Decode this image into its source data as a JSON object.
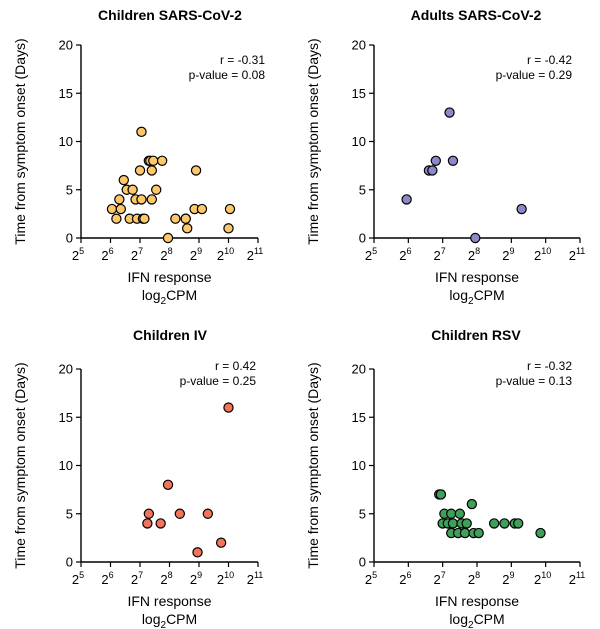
{
  "chart_data": [
    {
      "type": "scatter",
      "title": "Children SARS-CoV-2",
      "xlabel": "IFN response",
      "xlabel_line2": "log",
      "xlabel_sub": "2",
      "xlabel_suffix": "CPM",
      "ylabel": "Time from symptom onset (Days)",
      "x_scale": "log2",
      "xlim_exp": [
        5,
        11
      ],
      "x_tick_base": "2",
      "x_tick_exps": [
        "5",
        "6",
        "7",
        "8",
        "9",
        "10",
        "11"
      ],
      "ylim": [
        0,
        20
      ],
      "y_ticks": [
        "0",
        "5",
        "10",
        "15",
        "20"
      ],
      "stats": {
        "r": "r = -0.31",
        "p": "p-value = 0.08"
      },
      "marker_color": "#FDC86A",
      "points": [
        [
          6.05,
          3
        ],
        [
          6.2,
          2
        ],
        [
          6.3,
          4
        ],
        [
          6.35,
          3
        ],
        [
          6.45,
          6
        ],
        [
          6.55,
          5
        ],
        [
          6.65,
          2
        ],
        [
          6.75,
          5
        ],
        [
          6.85,
          4
        ],
        [
          6.9,
          2
        ],
        [
          7.0,
          7
        ],
        [
          7.05,
          11
        ],
        [
          7.05,
          4
        ],
        [
          7.1,
          2
        ],
        [
          7.15,
          2
        ],
        [
          7.3,
          8
        ],
        [
          7.35,
          8
        ],
        [
          7.4,
          7
        ],
        [
          7.45,
          8
        ],
        [
          7.55,
          5
        ],
        [
          7.75,
          8
        ],
        [
          7.4,
          4
        ],
        [
          7.95,
          0
        ],
        [
          8.2,
          2
        ],
        [
          8.55,
          2
        ],
        [
          8.6,
          1
        ],
        [
          8.55,
          2
        ],
        [
          8.9,
          7
        ],
        [
          8.85,
          3
        ],
        [
          9.1,
          3
        ],
        [
          10.05,
          3
        ],
        [
          10.0,
          1
        ]
      ]
    },
    {
      "type": "scatter",
      "title": "Adults SARS-CoV-2",
      "xlabel": "IFN response",
      "xlabel_line2": "log",
      "xlabel_sub": "2",
      "xlabel_suffix": "CPM",
      "ylabel": "Time from symptom onset (Days)",
      "x_scale": "log2",
      "xlim_exp": [
        5,
        11
      ],
      "x_tick_base": "2",
      "x_tick_exps": [
        "5",
        "6",
        "7",
        "8",
        "9",
        "10",
        "11"
      ],
      "ylim": [
        0,
        20
      ],
      "y_ticks": [
        "0",
        "5",
        "10",
        "15",
        "20"
      ],
      "stats": {
        "r": "r = -0.42",
        "p": "p-value = 0.29"
      },
      "marker_color": "#8C89C8",
      "points": [
        [
          5.95,
          4
        ],
        [
          6.6,
          7
        ],
        [
          6.7,
          7
        ],
        [
          6.8,
          8
        ],
        [
          7.2,
          13
        ],
        [
          7.3,
          8
        ],
        [
          7.95,
          0
        ],
        [
          9.3,
          3
        ]
      ]
    },
    {
      "type": "scatter",
      "title": "Children IV",
      "xlabel": "IFN response",
      "xlabel_line2": "log",
      "xlabel_sub": "2",
      "xlabel_suffix": "CPM",
      "ylabel": "Time from symptom onset (Days)",
      "x_scale": "log2",
      "xlim_exp": [
        5,
        11
      ],
      "x_tick_base": "2",
      "x_tick_exps": [
        "5",
        "6",
        "7",
        "8",
        "9",
        "10",
        "11"
      ],
      "ylim": [
        0,
        20
      ],
      "y_ticks": [
        "0",
        "5",
        "10",
        "15",
        "20"
      ],
      "stats": {
        "r": "r = 0.42",
        "p": "p-value = 0.25"
      },
      "marker_color": "#F2745A",
      "points": [
        [
          7.25,
          4
        ],
        [
          7.3,
          5
        ],
        [
          7.7,
          4
        ],
        [
          7.95,
          8
        ],
        [
          8.35,
          5
        ],
        [
          8.95,
          1
        ],
        [
          9.3,
          5
        ],
        [
          9.75,
          2
        ],
        [
          10.0,
          16
        ]
      ]
    },
    {
      "type": "scatter",
      "title": "Children RSV",
      "xlabel": "IFN response",
      "xlabel_line2": "log",
      "xlabel_sub": "2",
      "xlabel_suffix": "CPM",
      "ylabel": "Time from symptom onset (Days)",
      "x_scale": "log2",
      "xlim_exp": [
        5,
        11
      ],
      "x_tick_base": "2",
      "x_tick_exps": [
        "5",
        "6",
        "7",
        "8",
        "9",
        "10",
        "11"
      ],
      "ylim": [
        0,
        20
      ],
      "y_ticks": [
        "0",
        "5",
        "10",
        "15",
        "20"
      ],
      "stats": {
        "r": "r = -0.32",
        "p": "p-value = 0.13"
      },
      "marker_color": "#3FA05A",
      "points": [
        [
          6.9,
          7
        ],
        [
          6.95,
          7
        ],
        [
          7.0,
          4
        ],
        [
          7.05,
          5
        ],
        [
          7.15,
          4
        ],
        [
          7.25,
          3
        ],
        [
          7.25,
          5
        ],
        [
          7.3,
          4
        ],
        [
          7.45,
          3
        ],
        [
          7.5,
          5
        ],
        [
          7.55,
          4
        ],
        [
          7.65,
          3
        ],
        [
          7.7,
          4
        ],
        [
          7.85,
          6
        ],
        [
          7.9,
          3
        ],
        [
          8.05,
          3
        ],
        [
          8.5,
          4
        ],
        [
          8.8,
          4
        ],
        [
          9.1,
          4
        ],
        [
          9.2,
          4
        ],
        [
          9.85,
          3
        ]
      ]
    }
  ]
}
